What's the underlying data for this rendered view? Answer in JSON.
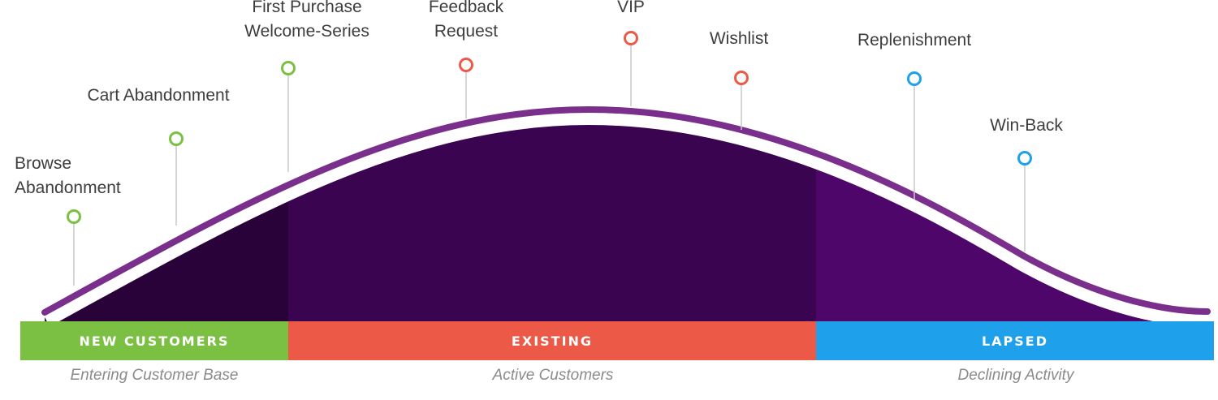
{
  "diagram": {
    "colors": {
      "curve_line": "#7b2f8c",
      "fill_new": "#280238",
      "fill_existing": "#3a0450",
      "fill_lapsed": "#4f066b",
      "pin_green": "#7bc043",
      "pin_red": "#ec5a47",
      "pin_blue": "#1ea0ea",
      "stem": "#c8c8c8",
      "text": "#3d3d3d",
      "caption": "#8a8a8a"
    },
    "touchpoints": [
      {
        "id": "browse",
        "lines": [
          "Browse",
          "Abandonment"
        ],
        "color": "pin_green"
      },
      {
        "id": "cart",
        "lines": [
          "Cart Abandonment"
        ],
        "color": "pin_green"
      },
      {
        "id": "first-purchase",
        "lines": [
          "First Purchase",
          "Welcome-Series"
        ],
        "color": "pin_green"
      },
      {
        "id": "feedback",
        "lines": [
          "Feedback",
          "Request"
        ],
        "color": "pin_red"
      },
      {
        "id": "vip",
        "lines": [
          "VIP"
        ],
        "color": "pin_red"
      },
      {
        "id": "wishlist",
        "lines": [
          "Wishlist"
        ],
        "color": "pin_red"
      },
      {
        "id": "replenishment",
        "lines": [
          "Replenishment"
        ],
        "color": "pin_blue"
      },
      {
        "id": "win-back",
        "lines": [
          "Win-Back"
        ],
        "color": "pin_blue"
      }
    ],
    "segments": [
      {
        "id": "new",
        "label": "NEW CUSTOMERS",
        "caption": "Entering Customer Base",
        "color": "#7bc043"
      },
      {
        "id": "existing",
        "label": "EXISTING",
        "caption": "Active Customers",
        "color": "#ec5a47"
      },
      {
        "id": "lapsed",
        "label": "LAPSED",
        "caption": "Declining Activity",
        "color": "#1ea0ea"
      }
    ]
  }
}
